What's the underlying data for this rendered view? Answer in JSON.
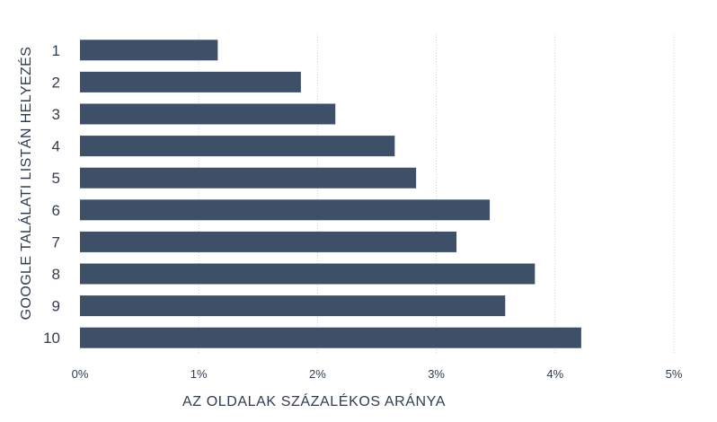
{
  "colors": {
    "bar": "#3d5068",
    "grid": "#c9d4e0",
    "text": "#2e3d52",
    "background": "#ffffff"
  },
  "chart_data": {
    "type": "bar",
    "orientation": "horizontal",
    "categories": [
      "1",
      "2",
      "3",
      "4",
      "5",
      "6",
      "7",
      "8",
      "9",
      "10"
    ],
    "values": [
      1.16,
      1.86,
      2.15,
      2.65,
      2.83,
      3.45,
      3.17,
      3.83,
      3.58,
      4.22
    ],
    "xlabel": "AZ OLDALAK SZÁZALÉKOS ARÁNYA",
    "ylabel": "GOOGLE TALÁLATI LISTÁN HELYEZÉS",
    "xlim": [
      0,
      5
    ],
    "x_ticks": [
      0,
      1,
      2,
      3,
      4,
      5
    ],
    "x_tick_labels": [
      "0%",
      "1%",
      "2%",
      "3%",
      "4%",
      "5%"
    ],
    "grid": "vertical dotted",
    "legend": "none"
  }
}
